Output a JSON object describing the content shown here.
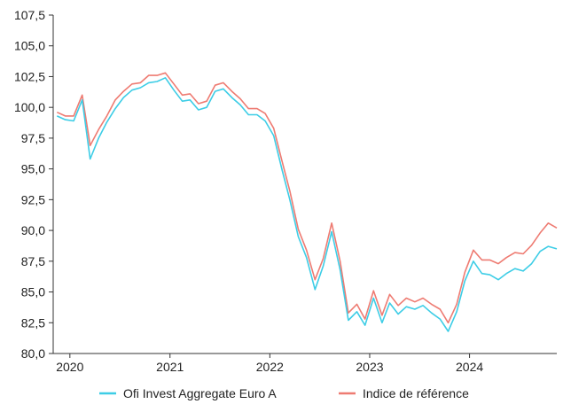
{
  "chart_data": {
    "type": "line",
    "title": "",
    "xlabel": "",
    "ylabel": "",
    "ylim": [
      80,
      107.5
    ],
    "xlim": [
      "2019-11-01",
      "2024-11-15"
    ],
    "grid": false,
    "legend_position": "bottom",
    "x_ticks": [
      "2020",
      "2021",
      "2022",
      "2023",
      "2024"
    ],
    "y_ticks": [
      "80,0",
      "82,5",
      "85,0",
      "87,5",
      "90,0",
      "92,5",
      "95,0",
      "97,5",
      "100,0",
      "102,5",
      "105,0",
      "107,5"
    ],
    "x": [
      "2019-11",
      "2019-12",
      "2020-01",
      "2020-02",
      "2020-03",
      "2020-04",
      "2020-05",
      "2020-06",
      "2020-07",
      "2020-08",
      "2020-09",
      "2020-10",
      "2020-11",
      "2020-12",
      "2021-01",
      "2021-02",
      "2021-03",
      "2021-04",
      "2021-05",
      "2021-06",
      "2021-07",
      "2021-08",
      "2021-09",
      "2021-10",
      "2021-11",
      "2021-12",
      "2022-01",
      "2022-02",
      "2022-03",
      "2022-04",
      "2022-05",
      "2022-06",
      "2022-07",
      "2022-08",
      "2022-09",
      "2022-10",
      "2022-11",
      "2022-12",
      "2023-01",
      "2023-02",
      "2023-03",
      "2023-04",
      "2023-05",
      "2023-06",
      "2023-07",
      "2023-08",
      "2023-09",
      "2023-10",
      "2023-11",
      "2023-12",
      "2024-01",
      "2024-02",
      "2024-03",
      "2024-04",
      "2024-05",
      "2024-06",
      "2024-07",
      "2024-08",
      "2024-09",
      "2024-10",
      "2024-11"
    ],
    "series": [
      {
        "name": "Ofi Invest Aggregate Euro A",
        "color": "#3dcde6",
        "values": [
          99.3,
          99.0,
          98.9,
          100.6,
          95.8,
          97.5,
          98.8,
          99.9,
          100.8,
          101.4,
          101.6,
          102.0,
          102.1,
          102.4,
          101.4,
          100.5,
          100.6,
          99.8,
          100.0,
          101.3,
          101.5,
          100.8,
          100.2,
          99.4,
          99.4,
          98.9,
          97.7,
          94.9,
          92.5,
          89.5,
          87.8,
          85.2,
          87.1,
          89.9,
          86.8,
          82.7,
          83.4,
          82.3,
          84.5,
          82.5,
          84.1,
          83.2,
          83.8,
          83.6,
          83.9,
          83.3,
          82.8,
          81.8,
          83.4,
          85.9,
          87.5,
          86.5,
          86.4,
          86.0,
          86.5,
          86.9,
          86.7,
          87.3,
          88.3,
          88.7,
          88.5
        ]
      },
      {
        "name": "Indice de référence",
        "color": "#ee7b72",
        "values": [
          99.6,
          99.3,
          99.3,
          101.0,
          96.9,
          98.2,
          99.3,
          100.6,
          101.3,
          101.9,
          102.0,
          102.6,
          102.6,
          102.8,
          101.9,
          101.0,
          101.1,
          100.3,
          100.5,
          101.8,
          102.0,
          101.3,
          100.7,
          99.9,
          99.9,
          99.5,
          98.3,
          95.6,
          93.2,
          90.1,
          88.4,
          86.0,
          87.7,
          90.6,
          87.5,
          83.3,
          84.0,
          82.8,
          85.1,
          83.1,
          84.8,
          83.9,
          84.5,
          84.2,
          84.5,
          84.0,
          83.6,
          82.5,
          84.0,
          86.6,
          88.4,
          87.6,
          87.6,
          87.3,
          87.8,
          88.2,
          88.1,
          88.8,
          89.8,
          90.6,
          90.2
        ]
      }
    ]
  }
}
